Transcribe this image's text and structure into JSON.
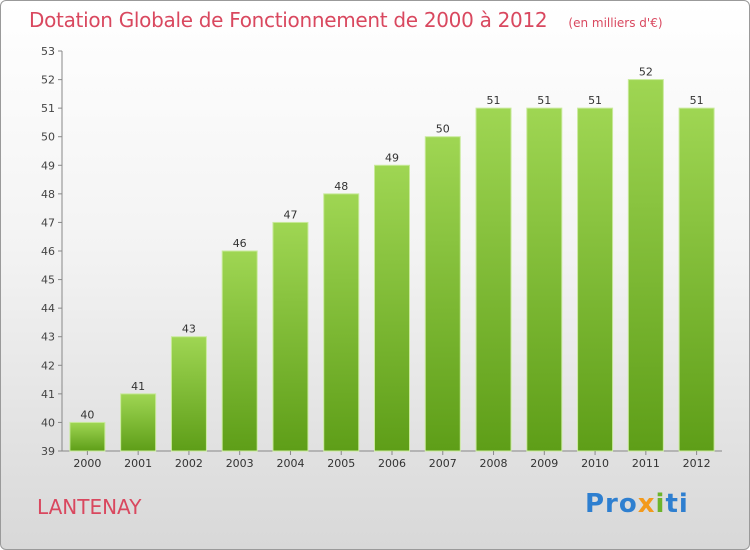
{
  "header": {
    "title": "Dotation Globale de Fonctionnement de 2000 à 2012",
    "unit": "(en milliers d'€)"
  },
  "footer": {
    "town": "LANTENAY",
    "logo_text": "Proxiti"
  },
  "colors": {
    "title": "#d9485f",
    "bar_top": "#9fd653",
    "bar_bottom": "#5e9e18"
  },
  "chart_data": {
    "type": "bar",
    "categories": [
      "2000",
      "2001",
      "2002",
      "2003",
      "2004",
      "2005",
      "2006",
      "2007",
      "2008",
      "2009",
      "2010",
      "2011",
      "2012"
    ],
    "values": [
      40,
      41,
      43,
      46,
      47,
      48,
      49,
      50,
      51,
      51,
      51,
      52,
      51
    ],
    "data_labels": [
      "40",
      "41",
      "43",
      "46",
      "47",
      "48",
      "49",
      "50",
      "51",
      "51",
      "51",
      "52",
      "51"
    ],
    "ylim": [
      39,
      53
    ],
    "yticks": [
      39,
      40,
      41,
      42,
      43,
      44,
      45,
      46,
      47,
      48,
      49,
      50,
      51,
      52,
      53
    ],
    "grid": false,
    "title": "Dotation Globale de Fonctionnement de 2000 à 2012",
    "xlabel": "",
    "ylabel": ""
  }
}
